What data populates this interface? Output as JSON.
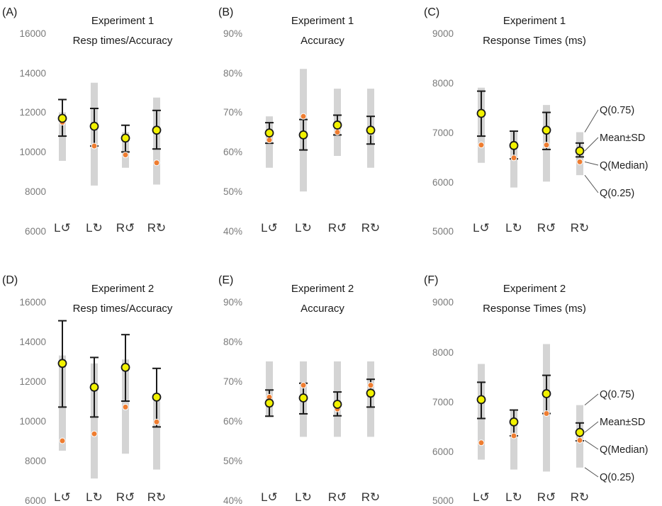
{
  "colors": {
    "range_bar": "#d4d4d4",
    "sd_whisker": "#1a1a1a",
    "mean_marker": "#f2f200",
    "median_marker": "#ee7d31"
  },
  "legend": {
    "q75": "Q(0.75)",
    "mean_sd": "Mean±SD",
    "median": "Q(Median)",
    "q25": "Q(0.25)"
  },
  "chart_data": [
    {
      "panel": "(A)",
      "type": "errorbar",
      "title": [
        "Experiment 1",
        "Resp times/Accuracy"
      ],
      "yticks": [
        "6000",
        "8000",
        "10000",
        "12000",
        "14000",
        "16000"
      ],
      "ylim": [
        6000,
        16000
      ],
      "categories": [
        "L↺",
        "L↻",
        "R↺",
        "R↻"
      ],
      "q25": [
        9550,
        8300,
        9200,
        8350
      ],
      "q75": [
        12000,
        13500,
        11000,
        12750
      ],
      "mean": [
        11700,
        11300,
        10700,
        11100
      ],
      "sd_low": [
        10800,
        10300,
        10000,
        10150
      ],
      "sd_high": [
        12650,
        12200,
        11350,
        12100
      ],
      "median": [
        11500,
        10300,
        9850,
        9450
      ]
    },
    {
      "panel": "(B)",
      "type": "errorbar",
      "title": [
        "Experiment 1",
        "Accuracy"
      ],
      "yticks": [
        "40%",
        "50%",
        "60%",
        "70%",
        "80%",
        "90%"
      ],
      "ylim": [
        40,
        90
      ],
      "categories": [
        "L↺",
        "L↻",
        "R↺",
        "R↻"
      ],
      "q25": [
        56,
        50,
        59,
        56
      ],
      "q75": [
        69,
        81,
        76,
        76
      ],
      "mean": [
        64.8,
        64.3,
        66.8,
        65.5
      ],
      "sd_low": [
        62.2,
        60.5,
        64.3,
        62
      ],
      "sd_high": [
        67.4,
        68.2,
        69.3,
        69
      ],
      "median": [
        63,
        69,
        65,
        65
      ]
    },
    {
      "panel": "(C)",
      "type": "errorbar",
      "title": [
        "Experiment 1",
        "Response Times (ms)"
      ],
      "yticks": [
        "5000",
        "6000",
        "7000",
        "8000",
        "9000"
      ],
      "ylim": [
        5000,
        9000
      ],
      "categories": [
        "L↺",
        "L↻",
        "R↺",
        "R↻"
      ],
      "q25": [
        6380,
        5880,
        6000,
        6130
      ],
      "q75": [
        7900,
        7000,
        7550,
        7000
      ],
      "mean": [
        7380,
        6730,
        7040,
        6620
      ],
      "sd_low": [
        6920,
        6460,
        6650,
        6500
      ],
      "sd_high": [
        7830,
        7020,
        7400,
        6780
      ],
      "median": [
        6740,
        6480,
        6740,
        6400
      ]
    },
    {
      "panel": "(D)",
      "type": "errorbar",
      "title": [
        "Experiment 2",
        "Resp times/Accuracy"
      ],
      "yticks": [
        "6000",
        "8000",
        "10000",
        "12000",
        "14000",
        "16000"
      ],
      "ylim": [
        6000,
        16000
      ],
      "categories": [
        "L↺",
        "L↻",
        "R↺",
        "R↻"
      ],
      "q25": [
        8500,
        7100,
        8350,
        7550
      ],
      "q75": [
        13300,
        12900,
        13100,
        11000
      ],
      "mean": [
        12900,
        11700,
        12700,
        11200
      ],
      "sd_low": [
        10700,
        10200,
        11000,
        9700
      ],
      "sd_high": [
        15050,
        13200,
        14350,
        12650
      ],
      "median": [
        9000,
        9350,
        10700,
        9950
      ]
    },
    {
      "panel": "(E)",
      "type": "errorbar",
      "title": [
        "Experiment 2",
        "Accuracy"
      ],
      "yticks": [
        "40%",
        "50%",
        "60%",
        "70%",
        "80%",
        "90%"
      ],
      "ylim": [
        40,
        90
      ],
      "categories": [
        "L↺",
        "L↻",
        "R↺",
        "R↻"
      ],
      "q25": [
        61,
        56,
        56,
        56
      ],
      "q75": [
        75,
        75,
        75,
        75
      ],
      "mean": [
        64.5,
        65.8,
        64.2,
        67
      ],
      "sd_low": [
        61.2,
        61.8,
        61.3,
        63.5
      ],
      "sd_high": [
        67.8,
        69.5,
        67.3,
        70.5
      ],
      "median": [
        66,
        69,
        63,
        69
      ]
    },
    {
      "panel": "(F)",
      "type": "errorbar",
      "title": [
        "Experiment 2",
        "Response Times (ms)"
      ],
      "yticks": [
        "5000",
        "6000",
        "7000",
        "8000",
        "9000"
      ],
      "ylim": [
        5000,
        9000
      ],
      "categories": [
        "L↺",
        "L↻",
        "R↺",
        "R↻"
      ],
      "q25": [
        5820,
        5620,
        5580,
        5660
      ],
      "q75": [
        7750,
        6800,
        8150,
        6920
      ],
      "mean": [
        7030,
        6580,
        7150,
        6370
      ],
      "sd_low": [
        6650,
        6300,
        6750,
        6200
      ],
      "sd_high": [
        7380,
        6820,
        7520,
        6560
      ],
      "median": [
        6160,
        6300,
        6750,
        6210
      ]
    }
  ]
}
